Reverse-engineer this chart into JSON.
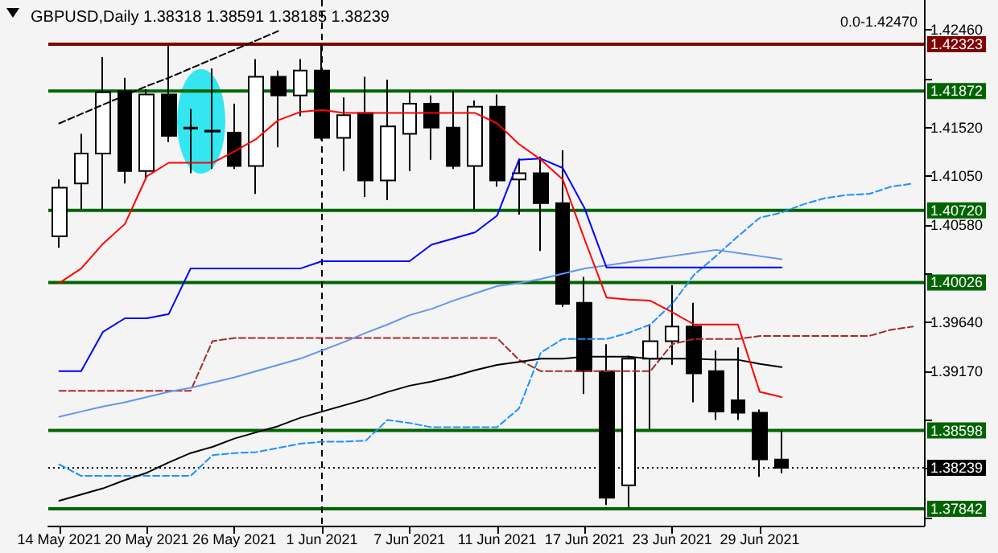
{
  "chart_data": {
    "type": "candlestick",
    "title": "GBPUSD,Daily 1.38318 1.38591 1.38185 1.38239",
    "annotations": [
      "0.0-1.42470"
    ],
    "categories": [
      "14 May 2021",
      null,
      null,
      null,
      "20 May 2021",
      null,
      null,
      null,
      "26 May 2021",
      null,
      null,
      null,
      "1 Jun 2021",
      null,
      null,
      null,
      "7 Jun 2021",
      null,
      null,
      null,
      "11 Jun 2021",
      null,
      null,
      null,
      "17 Jun 2021",
      null,
      null,
      null,
      "23 Jun 2021",
      null,
      null,
      null,
      "29 Jun 2021",
      null,
      null,
      null,
      null,
      null,
      null,
      null
    ],
    "ohlc": [
      [
        1.4047,
        1.4102,
        1.4036,
        1.4094
      ],
      [
        1.4098,
        1.4146,
        1.4073,
        1.4127
      ],
      [
        1.4127,
        1.422,
        1.4073,
        1.4186
      ],
      [
        1.4187,
        1.42,
        1.4098,
        1.411
      ],
      [
        1.411,
        1.4189,
        1.4102,
        1.4184
      ],
      [
        1.4184,
        1.4231,
        1.4138,
        1.4144
      ],
      [
        1.4152,
        1.417,
        1.4108,
        1.4151
      ],
      [
        1.4149,
        1.4209,
        1.4112,
        1.4148
      ],
      [
        1.4147,
        1.4175,
        1.4112,
        1.4115
      ],
      [
        1.4115,
        1.4218,
        1.4088,
        1.4201
      ],
      [
        1.4201,
        1.4207,
        1.4133,
        1.4183
      ],
      [
        1.4183,
        1.4218,
        1.4163,
        1.4207
      ],
      [
        1.4207,
        1.4232,
        1.414,
        1.4142
      ],
      [
        1.4142,
        1.4181,
        1.411,
        1.4164
      ],
      [
        1.4166,
        1.4201,
        1.4085,
        1.4101
      ],
      [
        1.4101,
        1.4198,
        1.4082,
        1.4153
      ],
      [
        1.4146,
        1.4187,
        1.411,
        1.4175
      ],
      [
        1.4175,
        1.4183,
        1.4121,
        1.4152
      ],
      [
        1.4152,
        1.4187,
        1.4112,
        1.4115
      ],
      [
        1.4115,
        1.4178,
        1.4073,
        1.4172
      ],
      [
        1.4172,
        1.4184,
        1.4095,
        1.4101
      ],
      [
        1.4102,
        1.4122,
        1.4068,
        1.4108
      ],
      [
        1.4108,
        1.4124,
        1.4033,
        1.4079
      ],
      [
        1.4079,
        1.413,
        1.3979,
        1.3982
      ],
      [
        1.3983,
        1.4008,
        1.3895,
        1.3917
      ],
      [
        1.3917,
        1.3943,
        1.3788,
        1.3795
      ],
      [
        1.3807,
        1.3932,
        1.3785,
        1.3929
      ],
      [
        1.3929,
        1.3962,
        1.3861,
        1.3946
      ],
      [
        1.3946,
        1.4,
        1.3923,
        1.396
      ],
      [
        1.396,
        1.3983,
        1.3887,
        1.3915
      ],
      [
        1.3917,
        1.3937,
        1.387,
        1.3878
      ],
      [
        1.3889,
        1.394,
        1.387,
        1.3877
      ],
      [
        1.3877,
        1.388,
        1.3815,
        1.3832
      ],
      [
        1.38318,
        1.38591,
        1.38185,
        1.38239
      ],
      null,
      null,
      null,
      null,
      null,
      null
    ],
    "series": [
      {
        "type": "line",
        "color": "#000000",
        "line_style": "dashed",
        "values": [
          1.4156,
          1.4165,
          1.4174,
          1.4183,
          1.4192,
          1.42,
          1.4209,
          1.4218,
          1.4227,
          1.4236,
          1.4245,
          null,
          null,
          null,
          null,
          null,
          null,
          null,
          null,
          null,
          null,
          null,
          null,
          null,
          null,
          null,
          null,
          null,
          null,
          null,
          null,
          null,
          null,
          null,
          null,
          null,
          null,
          null,
          null,
          null
        ]
      },
      {
        "type": "line",
        "color": "#1e90ff",
        "line_style": "dashed",
        "values": [
          1.3827,
          1.3816,
          1.3816,
          1.3816,
          1.3816,
          1.3816,
          1.3816,
          1.3836,
          1.3838,
          1.3839,
          1.3843,
          1.3847,
          1.3849,
          1.3849,
          1.385,
          1.387,
          1.3867,
          1.3863,
          1.3863,
          1.3863,
          1.3863,
          1.3881,
          1.3935,
          1.3948,
          1.3948,
          1.3948,
          1.3954,
          1.3962,
          1.3982,
          1.401,
          1.4028,
          1.4047,
          1.4065,
          1.407,
          1.4078,
          1.4084,
          1.4087,
          1.4088,
          1.4095,
          1.4098
        ]
      },
      {
        "type": "line",
        "color": "#a52a2a",
        "line_style": "dashed",
        "values": [
          1.3898,
          1.3898,
          1.3898,
          1.3898,
          1.3898,
          1.3898,
          1.3898,
          1.3946,
          1.3949,
          1.3949,
          1.3949,
          1.3949,
          1.3949,
          1.3949,
          1.3949,
          1.3949,
          1.3949,
          1.3949,
          1.3949,
          1.3949,
          1.3949,
          1.3928,
          1.3917,
          1.3917,
          1.3917,
          1.3917,
          1.3917,
          1.3917,
          1.3943,
          1.3948,
          1.3948,
          1.3948,
          1.3951,
          1.3951,
          1.3951,
          1.3951,
          1.3951,
          1.3951,
          1.3957,
          1.396
        ]
      },
      {
        "type": "line",
        "color": "#000000",
        "values": [
          1.3792,
          1.3798,
          1.3804,
          1.3812,
          1.3819,
          1.3829,
          1.3838,
          1.3844,
          1.3852,
          1.3858,
          1.3864,
          1.3872,
          1.3878,
          1.3884,
          1.389,
          1.3897,
          1.3903,
          1.3907,
          1.3912,
          1.3918,
          1.3923,
          1.3926,
          1.3929,
          1.3929,
          1.3931,
          1.3931,
          1.3931,
          1.3929,
          1.3929,
          1.3929,
          1.3928,
          1.3928,
          1.3924,
          1.3921,
          null,
          null,
          null,
          null,
          null,
          null
        ]
      },
      {
        "type": "line",
        "color": "#6495ed",
        "values": [
          1.3873,
          1.3878,
          1.3883,
          1.3887,
          1.3892,
          1.3897,
          1.3901,
          1.3906,
          1.3911,
          1.3917,
          1.3923,
          1.3929,
          1.3937,
          1.3945,
          1.3954,
          1.3962,
          1.3971,
          1.3977,
          1.3985,
          1.3992,
          1.3999,
          1.4002,
          1.4006,
          1.4011,
          1.4016,
          1.4019,
          1.4022,
          1.4025,
          1.4028,
          1.4031,
          1.4034,
          1.4031,
          1.4028,
          1.4025,
          null,
          null,
          null,
          null,
          null,
          null
        ]
      },
      {
        "type": "line",
        "color": "#0000ff",
        "values": [
          1.3917,
          1.3917,
          1.3955,
          1.3968,
          1.3968,
          1.3972,
          1.4016,
          1.4016,
          1.4016,
          1.4016,
          1.4016,
          1.4016,
          1.4023,
          1.4023,
          1.4023,
          1.4023,
          1.4023,
          1.4039,
          1.4045,
          1.4051,
          1.4067,
          1.4121,
          1.4122,
          1.4113,
          1.4074,
          1.4017,
          1.4017,
          1.4017,
          1.4017,
          1.4017,
          1.4017,
          1.4017,
          1.4017,
          1.4017,
          null,
          null,
          null,
          null,
          null,
          null
        ]
      },
      {
        "type": "line",
        "color": "#ff0000",
        "values": [
          1.4002,
          1.4016,
          1.404,
          1.4059,
          1.4105,
          1.4118,
          1.4118,
          1.4118,
          1.4129,
          1.4141,
          1.4159,
          1.4167,
          1.4169,
          1.4166,
          1.4166,
          1.4166,
          1.4166,
          1.4166,
          1.4166,
          1.4166,
          1.4156,
          1.4136,
          1.4121,
          1.4102,
          1.4044,
          1.3988,
          1.3986,
          1.3985,
          1.3974,
          1.3962,
          1.3962,
          1.3962,
          1.3897,
          1.3892,
          null,
          null,
          null,
          null,
          null,
          null
        ]
      }
    ],
    "ylim": [
      1.3768,
      1.4275
    ],
    "yticks": [
      {
        "value": 1.3776,
        "label": null
      },
      {
        "value": 1.3823,
        "label": null
      },
      {
        "value": 1.387,
        "label": null
      },
      {
        "value": 1.3917,
        "label": "1.39170"
      },
      {
        "value": 1.3964,
        "label": "1.39640"
      },
      {
        "value": 1.4011,
        "label": null
      },
      {
        "value": 1.4058,
        "label": "1.40580"
      },
      {
        "value": 1.4105,
        "label": "1.41050"
      },
      {
        "value": 1.4152,
        "label": "1.41520"
      },
      {
        "value": 1.4199,
        "label": null
      },
      {
        "value": 1.4246,
        "label": "1.42460"
      }
    ],
    "ref_lines": [
      {
        "axis": "y",
        "value": 1.42323,
        "label": "1.42323",
        "color": "#800000"
      },
      {
        "axis": "y",
        "value": 1.41872,
        "label": "1.41872",
        "color": "#006400"
      },
      {
        "axis": "y",
        "value": 1.4072,
        "label": "1.40720",
        "color": "#006400"
      },
      {
        "axis": "y",
        "value": 1.40026,
        "label": "1.40026",
        "color": "#006400"
      },
      {
        "axis": "y",
        "value": 1.38598,
        "label": "1.38598",
        "color": "#006400"
      },
      {
        "axis": "y",
        "value": 1.38239,
        "label": "1.38239",
        "color": "#000000",
        "line_style": "dotted"
      },
      {
        "axis": "y",
        "value": 1.37842,
        "label": "1.37842",
        "color": "#006400"
      },
      {
        "axis": "x",
        "value": "1 Jun 2021",
        "color": "#000000",
        "line_style": "dashed"
      }
    ],
    "marker": "none"
  }
}
